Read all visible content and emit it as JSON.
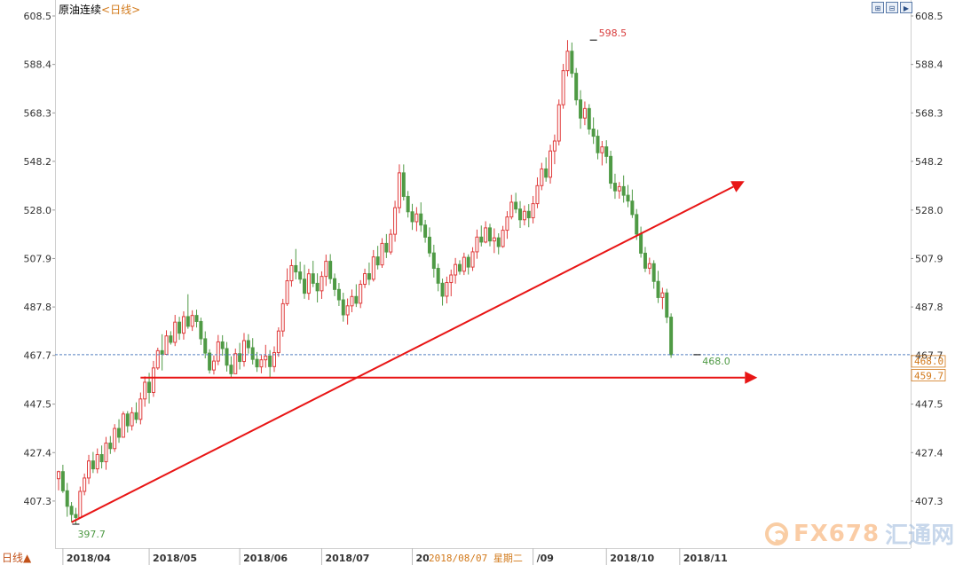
{
  "header": {
    "instrument": "原油连续",
    "period_label": "<日线>"
  },
  "toolbar": [
    {
      "icon": "single-chart-icon",
      "glyph": "⊞"
    },
    {
      "icon": "multi-chart-icon",
      "glyph": "⊟"
    },
    {
      "icon": "next-icon",
      "glyph": "▶"
    }
  ],
  "period_button": "日线▲",
  "footer_date": "2018/08/07 星期二",
  "watermark": {
    "brand": "FX678",
    "cn": "汇通网"
  },
  "colors": {
    "up": "#e03c3c",
    "down": "#4f9a45",
    "arrow": "#e81515",
    "current_line": "#5580c0",
    "tag": "#d2791a"
  },
  "chart_data": {
    "type": "candlestick",
    "ylim": [
      397.7,
      608.5
    ],
    "yticks": [
      "608.5",
      "588.4",
      "568.3",
      "548.2",
      "528.0",
      "507.9",
      "487.8",
      "467.7",
      "447.5",
      "427.4",
      "407.3"
    ],
    "xticks": [
      {
        "label": "2018/04",
        "idx": 1
      },
      {
        "label": "2018/05",
        "idx": 21
      },
      {
        "label": "2018/06",
        "idx": 42
      },
      {
        "label": "2018/07",
        "idx": 61
      },
      {
        "label": "20",
        "idx": 82
      },
      {
        "label": "/09",
        "idx": 110
      },
      {
        "label": "2018/10",
        "idx": 127
      },
      {
        "label": "2018/11",
        "idx": 144
      }
    ],
    "annotations": {
      "high": {
        "label": "598.5",
        "value": 598.5,
        "idx": 124
      },
      "low": {
        "label": "397.7",
        "value": 397.7,
        "idx": 4
      },
      "last": {
        "label": "468.0",
        "value": 468.0,
        "idx": 148
      }
    },
    "current_price": "468.0",
    "support_level": "459.7",
    "arrows": [
      {
        "from": {
          "idx": 3,
          "value": 398.5
        },
        "to": {
          "idx": 159,
          "value": 540.0
        }
      },
      {
        "from": {
          "idx": 19,
          "value": 458.5
        },
        "to": {
          "idx": 162,
          "value": 458.5
        }
      }
    ],
    "ohlc": [
      [
        416.57,
        419.9,
        411.72,
        419.51
      ],
      [
        419.51,
        422.35,
        410.67,
        411.56
      ],
      [
        411.56,
        414.81,
        400.8,
        405.12
      ],
      [
        405.12,
        406.89,
        398.53,
        401.72
      ],
      [
        401.72,
        404.48,
        397.7,
        400.48
      ],
      [
        400.48,
        413.31,
        400.48,
        411.32
      ],
      [
        411.32,
        418.72,
        409.69,
        416.86
      ],
      [
        416.86,
        426.45,
        414.35,
        423.93
      ],
      [
        423.93,
        427.67,
        418.92,
        420.66
      ],
      [
        420.66,
        429.12,
        418.83,
        426.58
      ],
      [
        426.58,
        430.34,
        420.82,
        423.6
      ],
      [
        423.6,
        433.9,
        420.27,
        431.34
      ],
      [
        431.34,
        434.26,
        426.85,
        429.05
      ],
      [
        429.05,
        439.21,
        427.67,
        437.41
      ],
      [
        437.41,
        441.24,
        431.46,
        433.77
      ],
      [
        433.77,
        444.5,
        433.77,
        443.41
      ],
      [
        443.41,
        444.6,
        435.74,
        438.52
      ],
      [
        438.52,
        446.19,
        436.56,
        443.94
      ],
      [
        443.94,
        448.24,
        439.54,
        441.19
      ],
      [
        441.19,
        452.31,
        439.11,
        449.65
      ],
      [
        449.65,
        459.02,
        446.42,
        456.59
      ],
      [
        456.59,
        460.47,
        447.77,
        452.34
      ],
      [
        452.34,
        465.41,
        450.52,
        462.51
      ],
      [
        462.51,
        470.91,
        461.74,
        469.67
      ],
      [
        469.67,
        476.5,
        461.47,
        468.15
      ],
      [
        468.15,
        478.15,
        467.88,
        475.79
      ],
      [
        475.79,
        477.75,
        472.19,
        473.13
      ],
      [
        473.13,
        484.52,
        471.57,
        481.51
      ],
      [
        481.51,
        483.72,
        474.17,
        476.93
      ],
      [
        476.93,
        485.99,
        474.26,
        483.81
      ],
      [
        483.81,
        493.08,
        478.76,
        479.78
      ],
      [
        479.78,
        486.42,
        477.86,
        484.28
      ],
      [
        484.28,
        486.7,
        479.28,
        481.78
      ],
      [
        481.78,
        483.37,
        472.05,
        474.61
      ],
      [
        474.61,
        477.69,
        466.51,
        468.67
      ],
      [
        468.67,
        470.26,
        460.2,
        461.67
      ],
      [
        461.67,
        467.71,
        459.79,
        465.36
      ],
      [
        465.36,
        476.19,
        463.66,
        473.32
      ],
      [
        473.32,
        476.08,
        467.6,
        470.54
      ],
      [
        470.54,
        473.26,
        461.01,
        463.65
      ],
      [
        463.65,
        467.35,
        458.31,
        460.11
      ],
      [
        460.11,
        470.55,
        460.11,
        468.43
      ],
      [
        468.43,
        472.91,
        461.88,
        465.19
      ],
      [
        465.19,
        477.01,
        463.05,
        473.85
      ],
      [
        473.85,
        476.52,
        468.43,
        470.9
      ],
      [
        470.9,
        474.88,
        463.94,
        466.07
      ],
      [
        466.07,
        469.13,
        460.87,
        462.95
      ],
      [
        462.95,
        467.86,
        460.29,
        465.88
      ],
      [
        465.88,
        472.09,
        462.62,
        467.46
      ],
      [
        467.46,
        469.91,
        458.69,
        463.07
      ],
      [
        463.07,
        471.47,
        460.84,
        468.87
      ],
      [
        468.87,
        479.35,
        467.14,
        477.83
      ],
      [
        477.83,
        491.18,
        475.45,
        489.15
      ],
      [
        489.15,
        503.82,
        488.23,
        498.66
      ],
      [
        498.66,
        507.56,
        496.22,
        504.95
      ],
      [
        504.95,
        511.86,
        499.25,
        502.33
      ],
      [
        502.33,
        506.58,
        497.53,
        499.33
      ],
      [
        499.33,
        505.3,
        491.2,
        493.49
      ],
      [
        493.49,
        503.64,
        490.75,
        501.56
      ],
      [
        501.56,
        506.95,
        496.04,
        497.62
      ],
      [
        497.62,
        501.77,
        489.67,
        494.51
      ],
      [
        494.51,
        502.58,
        491.15,
        500.47
      ],
      [
        500.47,
        509.53,
        496.51,
        506.75
      ],
      [
        506.75,
        509.72,
        497.46,
        499.54
      ],
      [
        499.54,
        501.69,
        492.29,
        495.07
      ],
      [
        495.07,
        497.77,
        488.2,
        490.76
      ],
      [
        490.76,
        493.7,
        481.71,
        484.53
      ],
      [
        484.53,
        491.32,
        480.51,
        488.27
      ],
      [
        488.27,
        495.04,
        485.63,
        492.14
      ],
      [
        492.14,
        497.22,
        487.79,
        489.34
      ],
      [
        489.34,
        498.94,
        487.33,
        497.21
      ],
      [
        497.21,
        503.69,
        495.64,
        501.62
      ],
      [
        501.62,
        506.21,
        496.88,
        499.28
      ],
      [
        499.28,
        511.41,
        498.36,
        508.56
      ],
      [
        508.56,
        513.15,
        503.37,
        505.25
      ],
      [
        505.25,
        516.33,
        504.02,
        514.17
      ],
      [
        514.17,
        518.05,
        508.09,
        510.61
      ],
      [
        510.61,
        520.12,
        509.51,
        517.96
      ],
      [
        517.96,
        531.87,
        514.86,
        528.98
      ],
      [
        528.98,
        546.95,
        526.69,
        543.43
      ],
      [
        543.43,
        546.92,
        531.97,
        533.65
      ],
      [
        533.65,
        535.91,
        524.9,
        527.28
      ],
      [
        527.28,
        530.58,
        519.76,
        523.16
      ],
      [
        523.16,
        529.22,
        519.2,
        526.39
      ],
      [
        526.39,
        531.19,
        518.95,
        521.78
      ],
      [
        521.78,
        523.92,
        514.47,
        516.75
      ],
      [
        516.75,
        520.8,
        508.54,
        510.21
      ],
      [
        510.21,
        513.61,
        500.01,
        503.82
      ],
      [
        503.82,
        505.75,
        494.32,
        497.65
      ],
      [
        497.65,
        499.56,
        488.37,
        492.27
      ],
      [
        492.27,
        500.39,
        489.28,
        497.94
      ],
      [
        497.94,
        503.31,
        492.23,
        501.07
      ],
      [
        501.07,
        508.13,
        497.47,
        505.43
      ],
      [
        505.43,
        507.2,
        501.2,
        502.63
      ],
      [
        502.63,
        510.32,
        501.05,
        508.39
      ],
      [
        508.39,
        509.63,
        501.25,
        504.35
      ],
      [
        504.35,
        512.59,
        502.73,
        510.67
      ],
      [
        510.67,
        519.91,
        507.81,
        516.79
      ],
      [
        516.79,
        521.57,
        512.91,
        514.72
      ],
      [
        514.72,
        523.35,
        514.19,
        520.61
      ],
      [
        520.61,
        522.33,
        512.95,
        515.18
      ],
      [
        515.18,
        520.4,
        510.16,
        516.47
      ],
      [
        516.47,
        518.36,
        509.61,
        512.87
      ],
      [
        512.87,
        521.43,
        512.36,
        519.63
      ],
      [
        519.63,
        527.54,
        516.07,
        525.14
      ],
      [
        525.14,
        534.29,
        524.14,
        531.25
      ],
      [
        531.25,
        535.15,
        526.72,
        528.41
      ],
      [
        528.41,
        531.71,
        520.57,
        523.97
      ],
      [
        523.97,
        529.89,
        521.64,
        527.47
      ],
      [
        527.47,
        530.48,
        520.86,
        524.79
      ],
      [
        524.79,
        533.84,
        522.46,
        530.66
      ],
      [
        530.66,
        541.56,
        528.77,
        538.12
      ],
      [
        538.12,
        547.58,
        536.24,
        545.06
      ],
      [
        545.06,
        549.85,
        539.75,
        541.61
      ],
      [
        541.61,
        555.12,
        538.95,
        552.51
      ],
      [
        552.51,
        559.32,
        547.02,
        556.63
      ],
      [
        556.63,
        573.88,
        554.8,
        571.68
      ],
      [
        571.68,
        588.62,
        570.01,
        585.82
      ],
      [
        585.82,
        598.5,
        583.41,
        593.88
      ],
      [
        593.88,
        597.49,
        582.91,
        584.72
      ],
      [
        584.72,
        586.91,
        571.48,
        573.69
      ],
      [
        573.69,
        577.7,
        561.71,
        566.14
      ],
      [
        566.14,
        573.02,
        563.18,
        570.11
      ],
      [
        570.11,
        571.93,
        559.34,
        561.59
      ],
      [
        561.59,
        566.41,
        555.42,
        558.61
      ],
      [
        558.61,
        561.33,
        549.02,
        551.77
      ],
      [
        551.77,
        556.64,
        546.52,
        554.22
      ],
      [
        554.22,
        556.96,
        547.34,
        550.25
      ],
      [
        550.25,
        552.6,
        536.87,
        539.13
      ],
      [
        539.13,
        543.07,
        532.66,
        535.97
      ],
      [
        535.97,
        539.61,
        532.71,
        537.72
      ],
      [
        537.72,
        542.37,
        531.07,
        534.14
      ],
      [
        534.14,
        538.43,
        529.17,
        531.72
      ],
      [
        531.72,
        536.51,
        524.72,
        526.13
      ],
      [
        526.13,
        528.41,
        515.61,
        518.03
      ],
      [
        518.03,
        521.12,
        508.25,
        510.11
      ],
      [
        510.11,
        512.7,
        502.27,
        503.88
      ],
      [
        503.88,
        508.25,
        501.32,
        505.76
      ],
      [
        505.76,
        507.19,
        495.37,
        498.41
      ],
      [
        498.41,
        502.8,
        489.44,
        491.72
      ],
      [
        491.72,
        495.78,
        486.91,
        493.64
      ],
      [
        493.64,
        495.34,
        481.11,
        483.57
      ],
      [
        483.57,
        485.15,
        466.69,
        468.0
      ]
    ]
  }
}
